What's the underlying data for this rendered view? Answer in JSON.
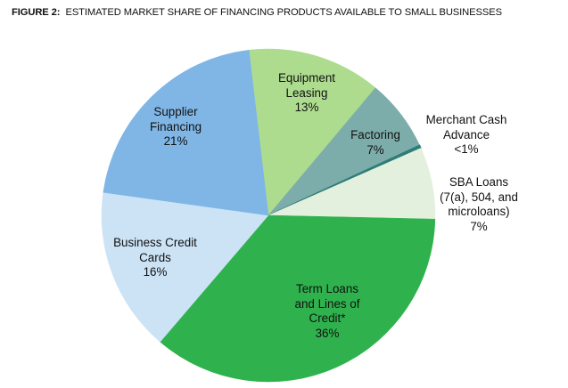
{
  "figure": {
    "title_prefix": "FIGURE 2:",
    "title_text": "ESTIMATED MARKET SHARE OF FINANCING PRODUCTS AVAILABLE TO SMALL  BUSINESSES"
  },
  "labels": {
    "supplier": [
      "Supplier",
      "Financing",
      "21%"
    ],
    "equipment": [
      "Equipment",
      "Leasing",
      "13%"
    ],
    "factoring": [
      "Factoring",
      "7%"
    ],
    "mca": [
      "Merchant Cash",
      "Advance",
      "<1%"
    ],
    "sba": [
      "SBA Loans",
      "(7(a), 504, and",
      "microloans)",
      "7%"
    ],
    "term": [
      "Term Loans",
      "and Lines of",
      "Credit*",
      "36%"
    ],
    "bcc": [
      "Business Credit",
      "Cards",
      "16%"
    ]
  },
  "chart_data": {
    "type": "pie",
    "title": "FIGURE 2: ESTIMATED MARKET SHARE OF FINANCING PRODUCTS AVAILABLE TO SMALL BUSINESSES",
    "start_angle_deg": 353.3,
    "direction": "clockwise",
    "legend": "none (labels inside/next to slices)",
    "slices": [
      {
        "key": "equipment",
        "label": "Equipment Leasing",
        "value": 13,
        "display": "13%",
        "color": "#addc8f"
      },
      {
        "key": "factoring",
        "label": "Factoring",
        "value": 7,
        "display": "7%",
        "color": "#7dadaa"
      },
      {
        "key": "mca",
        "label": "Merchant Cash Advance",
        "value": 0.3,
        "display": "<1%",
        "color": "#2e7d78"
      },
      {
        "key": "sba",
        "label": "SBA Loans (7(a), 504, and microloans)",
        "value": 7,
        "display": "7%",
        "color": "#e3f0de"
      },
      {
        "key": "term",
        "label": "Term Loans and Lines of Credit*",
        "value": 36,
        "display": "36%",
        "color": "#2fb24d"
      },
      {
        "key": "bcc",
        "label": "Business Credit Cards",
        "value": 16,
        "display": "16%",
        "color": "#cce3f6"
      },
      {
        "key": "supplier",
        "label": "Supplier Financing",
        "value": 21,
        "display": "21%",
        "color": "#7fb6e5"
      }
    ]
  }
}
